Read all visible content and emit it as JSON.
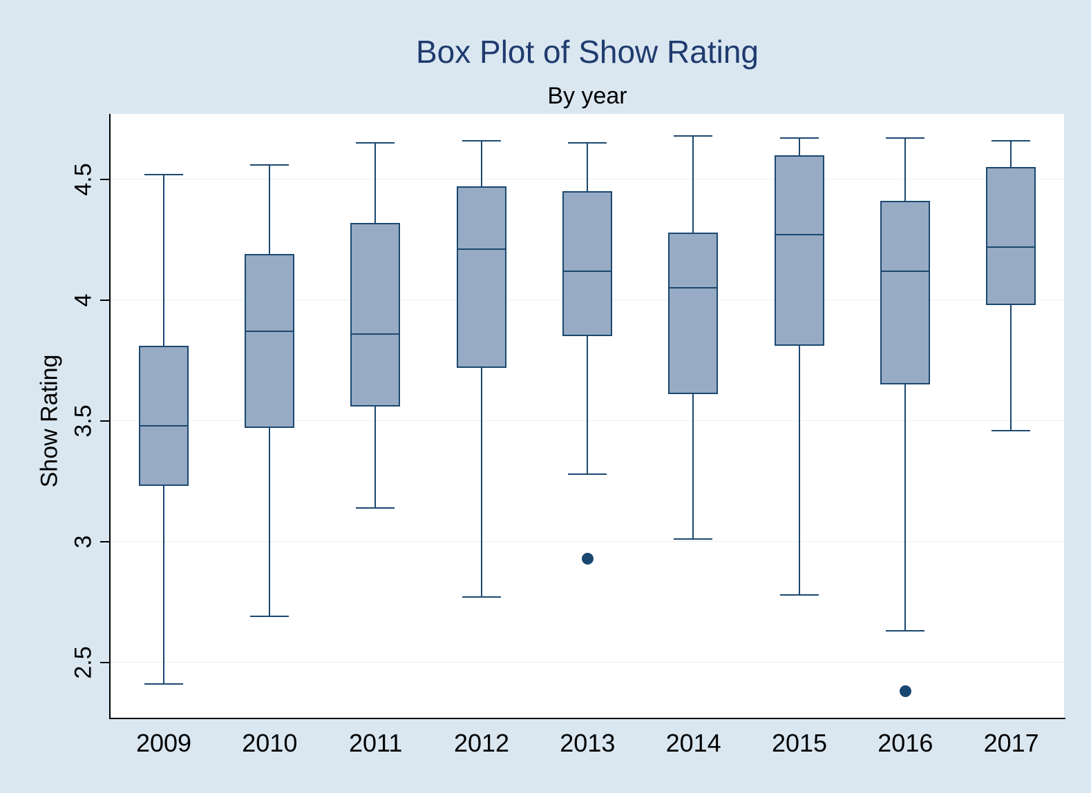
{
  "chart_data": {
    "type": "box",
    "title": "Box Plot of Show Rating",
    "subtitle": "By year",
    "ylabel": "Show Rating",
    "xlabel": "",
    "categories": [
      "2009",
      "2010",
      "2011",
      "2012",
      "2013",
      "2014",
      "2015",
      "2016",
      "2017"
    ],
    "yticks": [
      2.5,
      3,
      3.5,
      4,
      4.5
    ],
    "ylim": [
      2.27,
      4.77
    ],
    "grid": true,
    "legend": false,
    "series": [
      {
        "category": "2009",
        "low": 2.41,
        "q1": 3.23,
        "median": 3.48,
        "q3": 3.81,
        "high": 4.52,
        "outliers": []
      },
      {
        "category": "2010",
        "low": 2.69,
        "q1": 3.47,
        "median": 3.87,
        "q3": 4.19,
        "high": 4.56,
        "outliers": []
      },
      {
        "category": "2011",
        "low": 3.14,
        "q1": 3.56,
        "median": 3.86,
        "q3": 4.32,
        "high": 4.65,
        "outliers": []
      },
      {
        "category": "2012",
        "low": 2.77,
        "q1": 3.72,
        "median": 4.21,
        "q3": 4.47,
        "high": 4.66,
        "outliers": []
      },
      {
        "category": "2013",
        "low": 3.28,
        "q1": 3.85,
        "median": 4.12,
        "q3": 4.45,
        "high": 4.65,
        "outliers": [
          2.93
        ]
      },
      {
        "category": "2014",
        "low": 3.01,
        "q1": 3.61,
        "median": 4.05,
        "q3": 4.28,
        "high": 4.68,
        "outliers": []
      },
      {
        "category": "2015",
        "low": 2.78,
        "q1": 3.81,
        "median": 4.27,
        "q3": 4.6,
        "high": 4.67,
        "outliers": []
      },
      {
        "category": "2016",
        "low": 2.63,
        "q1": 3.65,
        "median": 4.12,
        "q3": 4.41,
        "high": 4.67,
        "outliers": [
          2.38
        ]
      },
      {
        "category": "2017",
        "low": 3.46,
        "q1": 3.98,
        "median": 4.22,
        "q3": 4.55,
        "high": 4.66,
        "outliers": []
      }
    ],
    "colors": {
      "background": "#dae7f1",
      "plot_background": "#ffffff",
      "box_fill": "#97abc4",
      "box_stroke": "#1a476f",
      "title": "#1f3b6e",
      "gridline": "#e9f1f7",
      "axis": "#000000"
    }
  }
}
